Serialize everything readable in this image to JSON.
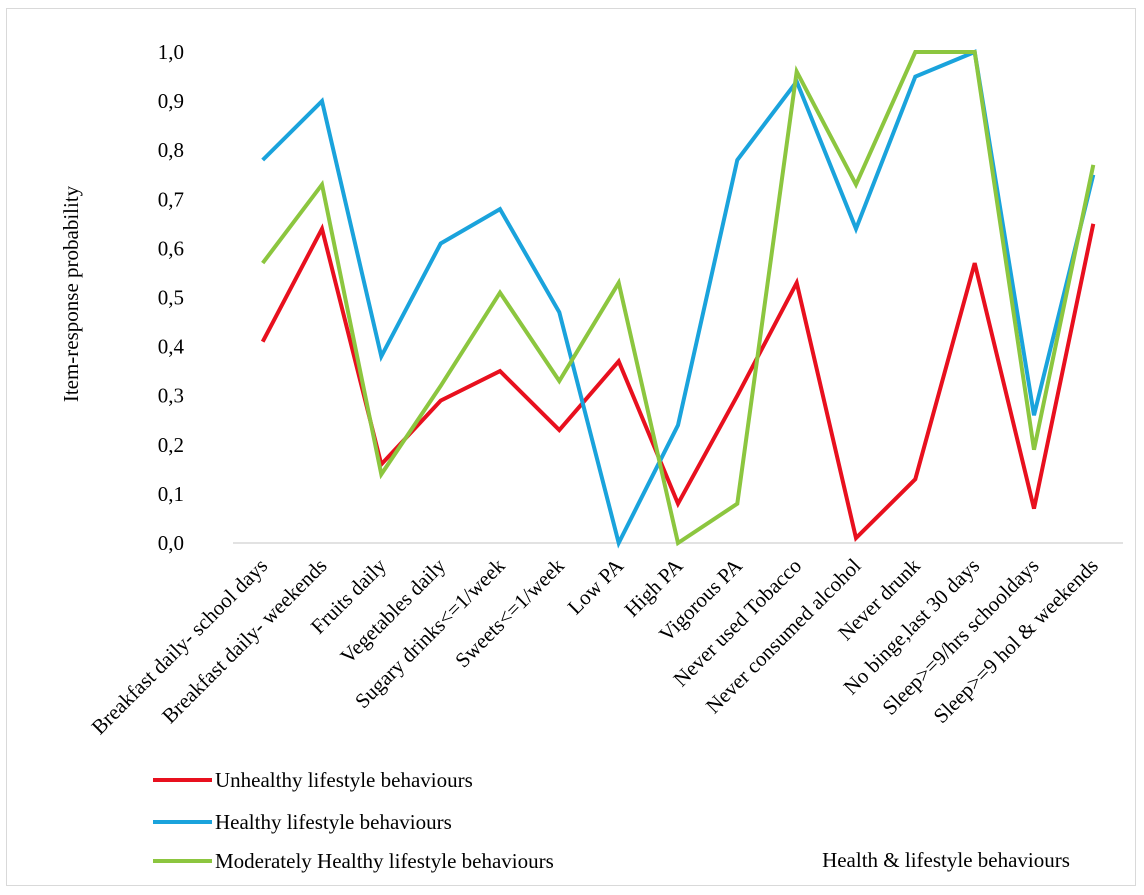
{
  "chart_data": {
    "type": "line",
    "ylabel": "Item-response probability",
    "xlabel": "Health & lifestyle behaviours",
    "ylim": [
      0,
      1
    ],
    "y_ticks": [
      "0,0",
      "0,1",
      "0,2",
      "0,3",
      "0,4",
      "0,5",
      "0,6",
      "0,7",
      "0,8",
      "0,9",
      "1,0"
    ],
    "grid": false,
    "legend_position": "bottom-left",
    "categories": [
      "Breakfast daily- school days",
      "Breakfast daily- weekends",
      "Fruits daily",
      "Vegetables daily",
      "Sugary drinks<=1/week",
      "Sweets<=1/week",
      "Low PA",
      "High PA",
      "Vigorous PA",
      "Never used Tobacco",
      "Never consumed alcohol",
      "Never drunk",
      "No binge,last 30 days",
      "Sleep>=9/hrs schooldays",
      "Sleep>=9 hol & weekends"
    ],
    "series": [
      {
        "name": "Unhealthy lifestyle behaviours",
        "color": "#e8101e",
        "values": [
          0.41,
          0.64,
          0.16,
          0.29,
          0.35,
          0.23,
          0.37,
          0.08,
          0.3,
          0.53,
          0.01,
          0.13,
          0.57,
          0.07,
          0.65
        ]
      },
      {
        "name": "Healthy lifestyle behaviours",
        "color": "#1aa3dc",
        "values": [
          0.78,
          0.9,
          0.38,
          0.61,
          0.68,
          0.47,
          0.0,
          0.24,
          0.78,
          0.94,
          0.64,
          0.95,
          1.0,
          0.26,
          0.75
        ]
      },
      {
        "name": "Moderately Healthy lifestyle behaviours",
        "color": "#8cc63f",
        "values": [
          0.57,
          0.73,
          0.14,
          0.32,
          0.51,
          0.33,
          0.53,
          0.0,
          0.08,
          0.96,
          0.73,
          1.0,
          1.0,
          0.19,
          0.77
        ]
      }
    ]
  }
}
